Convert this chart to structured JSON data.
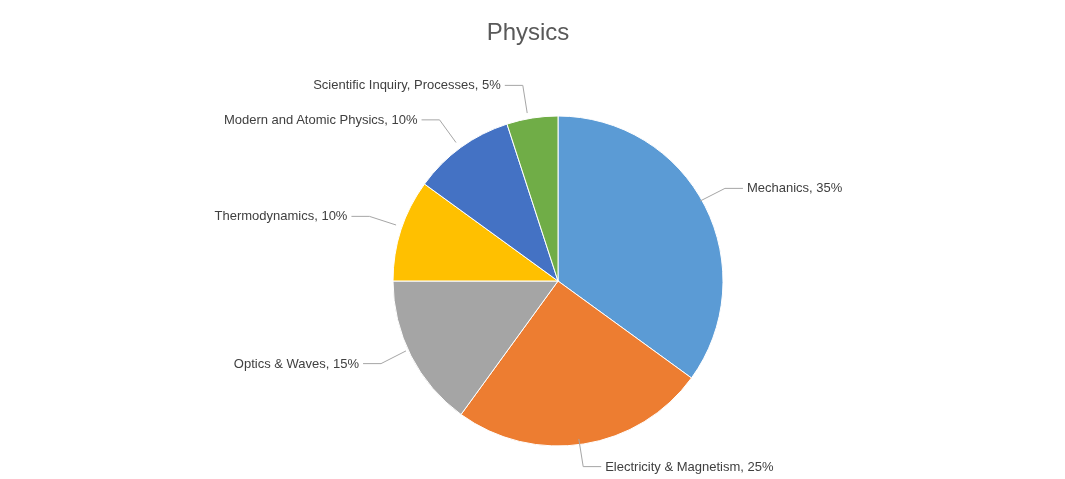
{
  "chart_data": {
    "type": "pie",
    "title": "Physics",
    "categories": [
      "Mechanics",
      "Electricity & Magnetism",
      "Optics & Waves",
      "Thermodynamics",
      "Modern and Atomic Physics",
      "Scientific Inquiry, Processes"
    ],
    "values": [
      35,
      25,
      15,
      10,
      10,
      5
    ],
    "value_labels": [
      "35%",
      "25%",
      "15%",
      "10%",
      "10%",
      "5%"
    ],
    "colors": [
      "#5b9bd5",
      "#ed7d31",
      "#a5a5a5",
      "#ffc000",
      "#4472c4",
      "#70ad47"
    ],
    "legend": false
  }
}
